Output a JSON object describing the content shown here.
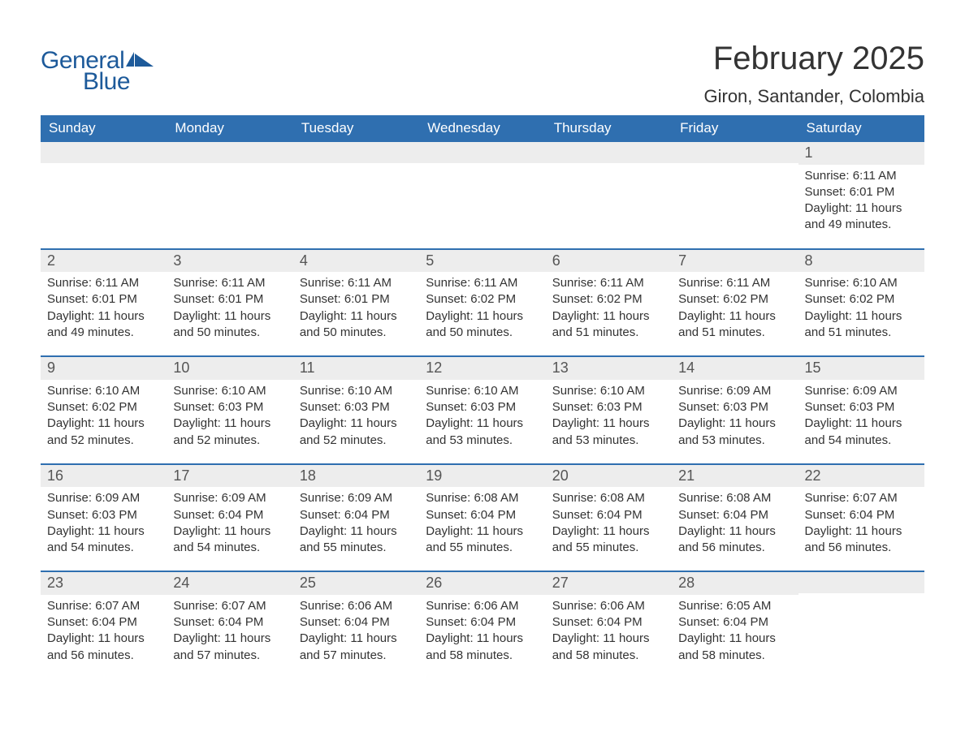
{
  "logo": {
    "text_general": "General",
    "text_blue": "Blue",
    "flag_color": "#1d5a9a"
  },
  "header": {
    "month_title": "February 2025",
    "location": "Giron, Santander, Colombia"
  },
  "weekdays": [
    "Sunday",
    "Monday",
    "Tuesday",
    "Wednesday",
    "Thursday",
    "Friday",
    "Saturday"
  ],
  "colors": {
    "header_bg": "#2f6fb0",
    "header_text": "#ffffff",
    "daynum_bg": "#ededed",
    "body_text": "#333333",
    "page_bg": "#ffffff",
    "divider": "#2f6fb0"
  },
  "weeks": [
    [
      {
        "n": "",
        "sunrise": "",
        "sunset": "",
        "daylight": ""
      },
      {
        "n": "",
        "sunrise": "",
        "sunset": "",
        "daylight": ""
      },
      {
        "n": "",
        "sunrise": "",
        "sunset": "",
        "daylight": ""
      },
      {
        "n": "",
        "sunrise": "",
        "sunset": "",
        "daylight": ""
      },
      {
        "n": "",
        "sunrise": "",
        "sunset": "",
        "daylight": ""
      },
      {
        "n": "",
        "sunrise": "",
        "sunset": "",
        "daylight": ""
      },
      {
        "n": "1",
        "sunrise": "Sunrise: 6:11 AM",
        "sunset": "Sunset: 6:01 PM",
        "daylight": "Daylight: 11 hours and 49 minutes."
      }
    ],
    [
      {
        "n": "2",
        "sunrise": "Sunrise: 6:11 AM",
        "sunset": "Sunset: 6:01 PM",
        "daylight": "Daylight: 11 hours and 49 minutes."
      },
      {
        "n": "3",
        "sunrise": "Sunrise: 6:11 AM",
        "sunset": "Sunset: 6:01 PM",
        "daylight": "Daylight: 11 hours and 50 minutes."
      },
      {
        "n": "4",
        "sunrise": "Sunrise: 6:11 AM",
        "sunset": "Sunset: 6:01 PM",
        "daylight": "Daylight: 11 hours and 50 minutes."
      },
      {
        "n": "5",
        "sunrise": "Sunrise: 6:11 AM",
        "sunset": "Sunset: 6:02 PM",
        "daylight": "Daylight: 11 hours and 50 minutes."
      },
      {
        "n": "6",
        "sunrise": "Sunrise: 6:11 AM",
        "sunset": "Sunset: 6:02 PM",
        "daylight": "Daylight: 11 hours and 51 minutes."
      },
      {
        "n": "7",
        "sunrise": "Sunrise: 6:11 AM",
        "sunset": "Sunset: 6:02 PM",
        "daylight": "Daylight: 11 hours and 51 minutes."
      },
      {
        "n": "8",
        "sunrise": "Sunrise: 6:10 AM",
        "sunset": "Sunset: 6:02 PM",
        "daylight": "Daylight: 11 hours and 51 minutes."
      }
    ],
    [
      {
        "n": "9",
        "sunrise": "Sunrise: 6:10 AM",
        "sunset": "Sunset: 6:02 PM",
        "daylight": "Daylight: 11 hours and 52 minutes."
      },
      {
        "n": "10",
        "sunrise": "Sunrise: 6:10 AM",
        "sunset": "Sunset: 6:03 PM",
        "daylight": "Daylight: 11 hours and 52 minutes."
      },
      {
        "n": "11",
        "sunrise": "Sunrise: 6:10 AM",
        "sunset": "Sunset: 6:03 PM",
        "daylight": "Daylight: 11 hours and 52 minutes."
      },
      {
        "n": "12",
        "sunrise": "Sunrise: 6:10 AM",
        "sunset": "Sunset: 6:03 PM",
        "daylight": "Daylight: 11 hours and 53 minutes."
      },
      {
        "n": "13",
        "sunrise": "Sunrise: 6:10 AM",
        "sunset": "Sunset: 6:03 PM",
        "daylight": "Daylight: 11 hours and 53 minutes."
      },
      {
        "n": "14",
        "sunrise": "Sunrise: 6:09 AM",
        "sunset": "Sunset: 6:03 PM",
        "daylight": "Daylight: 11 hours and 53 minutes."
      },
      {
        "n": "15",
        "sunrise": "Sunrise: 6:09 AM",
        "sunset": "Sunset: 6:03 PM",
        "daylight": "Daylight: 11 hours and 54 minutes."
      }
    ],
    [
      {
        "n": "16",
        "sunrise": "Sunrise: 6:09 AM",
        "sunset": "Sunset: 6:03 PM",
        "daylight": "Daylight: 11 hours and 54 minutes."
      },
      {
        "n": "17",
        "sunrise": "Sunrise: 6:09 AM",
        "sunset": "Sunset: 6:04 PM",
        "daylight": "Daylight: 11 hours and 54 minutes."
      },
      {
        "n": "18",
        "sunrise": "Sunrise: 6:09 AM",
        "sunset": "Sunset: 6:04 PM",
        "daylight": "Daylight: 11 hours and 55 minutes."
      },
      {
        "n": "19",
        "sunrise": "Sunrise: 6:08 AM",
        "sunset": "Sunset: 6:04 PM",
        "daylight": "Daylight: 11 hours and 55 minutes."
      },
      {
        "n": "20",
        "sunrise": "Sunrise: 6:08 AM",
        "sunset": "Sunset: 6:04 PM",
        "daylight": "Daylight: 11 hours and 55 minutes."
      },
      {
        "n": "21",
        "sunrise": "Sunrise: 6:08 AM",
        "sunset": "Sunset: 6:04 PM",
        "daylight": "Daylight: 11 hours and 56 minutes."
      },
      {
        "n": "22",
        "sunrise": "Sunrise: 6:07 AM",
        "sunset": "Sunset: 6:04 PM",
        "daylight": "Daylight: 11 hours and 56 minutes."
      }
    ],
    [
      {
        "n": "23",
        "sunrise": "Sunrise: 6:07 AM",
        "sunset": "Sunset: 6:04 PM",
        "daylight": "Daylight: 11 hours and 56 minutes."
      },
      {
        "n": "24",
        "sunrise": "Sunrise: 6:07 AM",
        "sunset": "Sunset: 6:04 PM",
        "daylight": "Daylight: 11 hours and 57 minutes."
      },
      {
        "n": "25",
        "sunrise": "Sunrise: 6:06 AM",
        "sunset": "Sunset: 6:04 PM",
        "daylight": "Daylight: 11 hours and 57 minutes."
      },
      {
        "n": "26",
        "sunrise": "Sunrise: 6:06 AM",
        "sunset": "Sunset: 6:04 PM",
        "daylight": "Daylight: 11 hours and 58 minutes."
      },
      {
        "n": "27",
        "sunrise": "Sunrise: 6:06 AM",
        "sunset": "Sunset: 6:04 PM",
        "daylight": "Daylight: 11 hours and 58 minutes."
      },
      {
        "n": "28",
        "sunrise": "Sunrise: 6:05 AM",
        "sunset": "Sunset: 6:04 PM",
        "daylight": "Daylight: 11 hours and 58 minutes."
      },
      {
        "n": "",
        "sunrise": "",
        "sunset": "",
        "daylight": ""
      }
    ]
  ]
}
